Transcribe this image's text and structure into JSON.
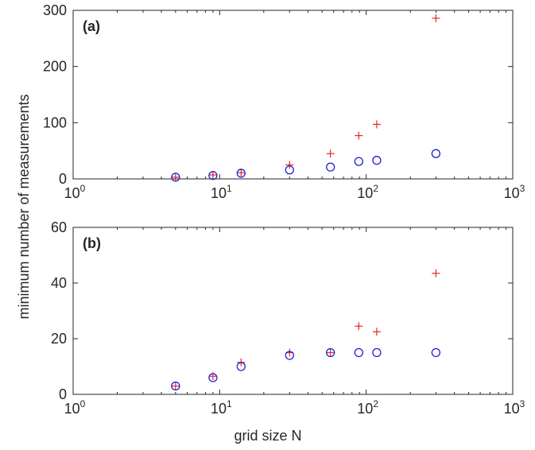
{
  "chart_data": [
    {
      "type": "scatter",
      "panel_label": "(a)",
      "x_scale": "log",
      "xlim": [
        1,
        1000
      ],
      "ylim": [
        0,
        300
      ],
      "x_tick_labels": [
        {
          "base": "10",
          "exp": "0"
        },
        {
          "base": "10",
          "exp": "1"
        },
        {
          "base": "10",
          "exp": "2"
        },
        {
          "base": "10",
          "exp": "3"
        }
      ],
      "y_ticks": [
        0,
        100,
        200,
        300
      ],
      "y_tick_labels": [
        "0",
        "100",
        "200",
        "300"
      ],
      "series": [
        {
          "marker": "plus",
          "color": "#e8262a",
          "x": [
            5,
            9,
            14,
            30,
            57,
            89,
            118,
            299
          ],
          "y": [
            3,
            7,
            11,
            25,
            45,
            77,
            97,
            286
          ]
        },
        {
          "marker": "circle",
          "color": "#1f1fd6",
          "x": [
            5,
            9,
            14,
            30,
            57,
            89,
            118,
            299
          ],
          "y": [
            3,
            6,
            10,
            16,
            21,
            31,
            33,
            45
          ]
        }
      ]
    },
    {
      "type": "scatter",
      "panel_label": "(b)",
      "x_scale": "log",
      "xlim": [
        1,
        1000
      ],
      "ylim": [
        0,
        60
      ],
      "x_tick_labels": [
        {
          "base": "10",
          "exp": "0"
        },
        {
          "base": "10",
          "exp": "1"
        },
        {
          "base": "10",
          "exp": "2"
        },
        {
          "base": "10",
          "exp": "3"
        }
      ],
      "y_ticks": [
        0,
        20,
        40,
        60
      ],
      "y_tick_labels": [
        "0",
        "20",
        "40",
        "60"
      ],
      "series": [
        {
          "marker": "plus",
          "color": "#e8262a",
          "x": [
            5,
            9,
            14,
            30,
            57,
            89,
            118,
            299
          ],
          "y": [
            3,
            6.5,
            11.5,
            15,
            15,
            24.5,
            22.5,
            43.5
          ]
        },
        {
          "marker": "circle",
          "color": "#1f1fd6",
          "x": [
            5,
            9,
            14,
            30,
            57,
            89,
            118,
            299
          ],
          "y": [
            3,
            6,
            10,
            14,
            15,
            15,
            15,
            15
          ]
        }
      ]
    }
  ],
  "labels": {
    "xlabel": "grid size N",
    "ylabel": "minimum number of measurements"
  }
}
